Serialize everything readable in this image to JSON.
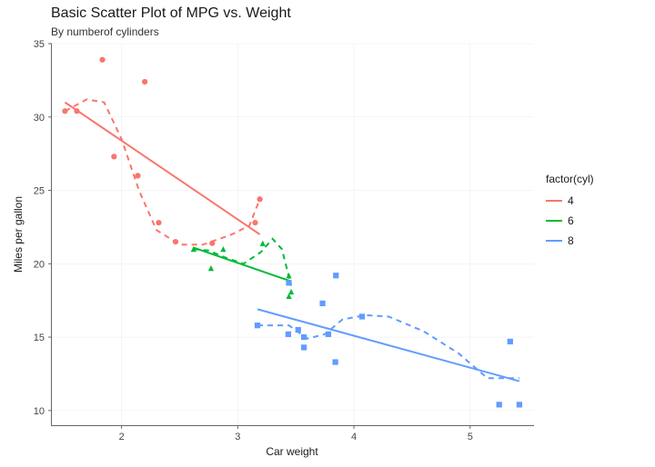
{
  "chart": {
    "type": "scatter",
    "title": "Basic Scatter Plot of MPG vs. Weight",
    "subtitle": "By numberof cylinders",
    "title_fontsize": 16,
    "subtitle_fontsize": 12,
    "xlabel": "Car weight",
    "ylabel": "Miles per gallon",
    "label_fontsize": 12,
    "xlim": [
      1.4,
      5.55
    ],
    "ylim": [
      9,
      35
    ],
    "xticks": [
      2,
      3,
      4,
      5
    ],
    "yticks": [
      10,
      15,
      20,
      25,
      30,
      35
    ],
    "background_color": "#ffffff",
    "grid_color": "#ebebeb",
    "axis_color": "#666666",
    "tick_fontsize": 11,
    "marker_size": 5,
    "line_width": 2,
    "dash_pattern": "6 5",
    "series": [
      {
        "name": "4",
        "color": "#f8766d",
        "marker": "circle",
        "points": [
          [
            2.32,
            22.8
          ],
          [
            3.19,
            24.4
          ],
          [
            3.15,
            22.8
          ],
          [
            2.2,
            32.4
          ],
          [
            1.615,
            30.4
          ],
          [
            1.835,
            33.9
          ],
          [
            2.465,
            21.5
          ],
          [
            1.935,
            27.3
          ],
          [
            2.14,
            26.0
          ],
          [
            1.513,
            30.4
          ],
          [
            2.78,
            21.4
          ]
        ],
        "linear_fit": [
          [
            1.513,
            31.0
          ],
          [
            3.19,
            22.0
          ]
        ],
        "smooth_path": [
          [
            1.513,
            30.4
          ],
          [
            1.7,
            31.2
          ],
          [
            1.85,
            31.0
          ],
          [
            2.0,
            28.5
          ],
          [
            2.15,
            25.0
          ],
          [
            2.3,
            22.3
          ],
          [
            2.5,
            21.3
          ],
          [
            2.7,
            21.3
          ],
          [
            2.95,
            22.0
          ],
          [
            3.1,
            22.6
          ],
          [
            3.19,
            24.4
          ]
        ]
      },
      {
        "name": "6",
        "color": "#00ba38",
        "marker": "triangle",
        "points": [
          [
            2.62,
            21.0
          ],
          [
            2.875,
            21.0
          ],
          [
            3.215,
            21.4
          ],
          [
            3.46,
            18.1
          ],
          [
            3.44,
            19.2
          ],
          [
            3.44,
            17.8
          ],
          [
            2.77,
            19.7
          ]
        ],
        "linear_fit": [
          [
            2.62,
            21.1
          ],
          [
            3.46,
            18.8
          ]
        ],
        "smooth_path": [
          [
            2.62,
            21.0
          ],
          [
            2.75,
            20.9
          ],
          [
            2.9,
            20.4
          ],
          [
            3.05,
            20.0
          ],
          [
            3.2,
            20.8
          ],
          [
            3.3,
            21.7
          ],
          [
            3.38,
            21.0
          ],
          [
            3.46,
            18.5
          ]
        ]
      },
      {
        "name": "8",
        "color": "#619cff",
        "marker": "square",
        "points": [
          [
            3.44,
            18.7
          ],
          [
            3.57,
            14.3
          ],
          [
            4.07,
            16.4
          ],
          [
            3.73,
            17.3
          ],
          [
            3.78,
            15.2
          ],
          [
            5.25,
            10.4
          ],
          [
            5.424,
            10.4
          ],
          [
            5.345,
            14.7
          ],
          [
            3.52,
            15.5
          ],
          [
            3.435,
            15.2
          ],
          [
            3.84,
            13.3
          ],
          [
            3.845,
            19.2
          ],
          [
            3.17,
            15.8
          ],
          [
            3.57,
            15.0
          ]
        ],
        "linear_fit": [
          [
            3.17,
            16.9
          ],
          [
            5.424,
            12.0
          ]
        ],
        "smooth_path": [
          [
            3.17,
            15.8
          ],
          [
            3.44,
            15.8
          ],
          [
            3.6,
            14.9
          ],
          [
            3.75,
            15.2
          ],
          [
            3.9,
            16.2
          ],
          [
            4.1,
            16.5
          ],
          [
            4.3,
            16.4
          ],
          [
            4.6,
            15.4
          ],
          [
            4.9,
            13.9
          ],
          [
            5.15,
            12.2
          ],
          [
            5.424,
            12.2
          ]
        ]
      }
    ],
    "legend": {
      "title": "factor(cyl)",
      "position": "right",
      "title_fontsize": 12,
      "item_fontsize": 12
    }
  }
}
